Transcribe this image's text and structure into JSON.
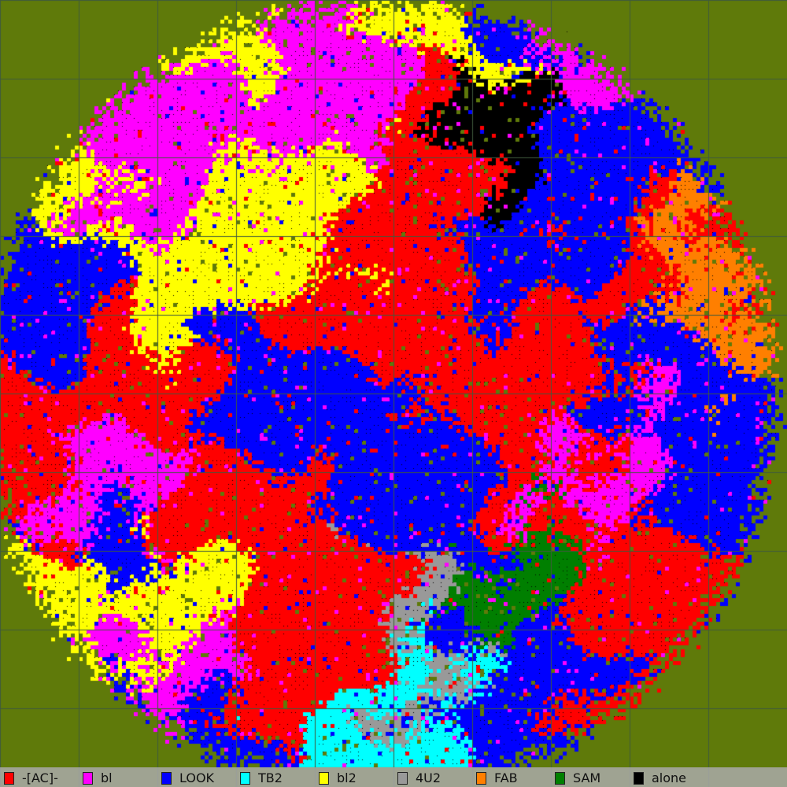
{
  "map": {
    "background_color": "#5f7a0a",
    "grid_color": "#3f5a3c"
  },
  "legend": [
    {
      "name": "-[AC]-",
      "color": "#ff0000"
    },
    {
      "name": "bl",
      "color": "#ff00ff"
    },
    {
      "name": "LOOK",
      "color": "#0000ff"
    },
    {
      "name": "TB2",
      "color": "#00ffff"
    },
    {
      "name": "bl2",
      "color": "#ffff00"
    },
    {
      "name": "4U2",
      "color": "#999999"
    },
    {
      "name": "FAB",
      "color": "#ff7f00"
    },
    {
      "name": "SAM",
      "color": "#007f00"
    },
    {
      "name": "alone",
      "color": "#000000"
    }
  ]
}
